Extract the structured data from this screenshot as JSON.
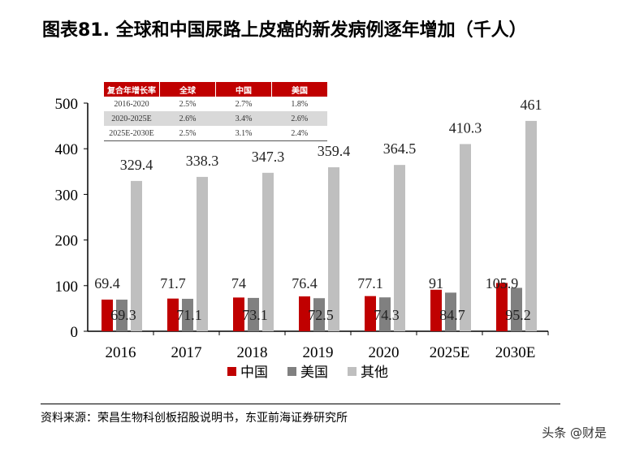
{
  "title": "图表81. 全球和中国尿路上皮癌的新发病例逐年增加（千人）",
  "source": "资料来源：荣昌生物科创板招股说明书，东亚前海证券研究所",
  "watermark": "头条 @财是",
  "cagr_table": {
    "headers": [
      "复合年增长率",
      "全球",
      "中国",
      "美国"
    ],
    "rows": [
      [
        "2016-2020",
        "2.5%",
        "2.7%",
        "1.8%"
      ],
      [
        "2020-2025E",
        "2.6%",
        "3.4%",
        "2.6%"
      ],
      [
        "2025E-2030E",
        "2.5%",
        "3.1%",
        "2.4%"
      ]
    ]
  },
  "chart_data": {
    "type": "bar",
    "categories": [
      "2016",
      "2017",
      "2018",
      "2019",
      "2020",
      "2025E",
      "2030E"
    ],
    "series": [
      {
        "name": "中国",
        "color": "#c00000",
        "values": [
          69.4,
          71.7,
          74,
          76.4,
          77.1,
          91,
          105.9
        ]
      },
      {
        "name": "美国",
        "color": "#808080",
        "values": [
          69.3,
          71.1,
          73.1,
          72.5,
          74.3,
          84.7,
          95.2
        ]
      },
      {
        "name": "其他",
        "color": "#bfbfbf",
        "values": [
          329.4,
          338.3,
          347.3,
          359.4,
          364.5,
          410.3,
          461
        ]
      }
    ],
    "ylim": [
      0,
      500
    ],
    "yticks": [
      0,
      100,
      200,
      300,
      400,
      500
    ],
    "legend": "bottom",
    "grid": false
  }
}
